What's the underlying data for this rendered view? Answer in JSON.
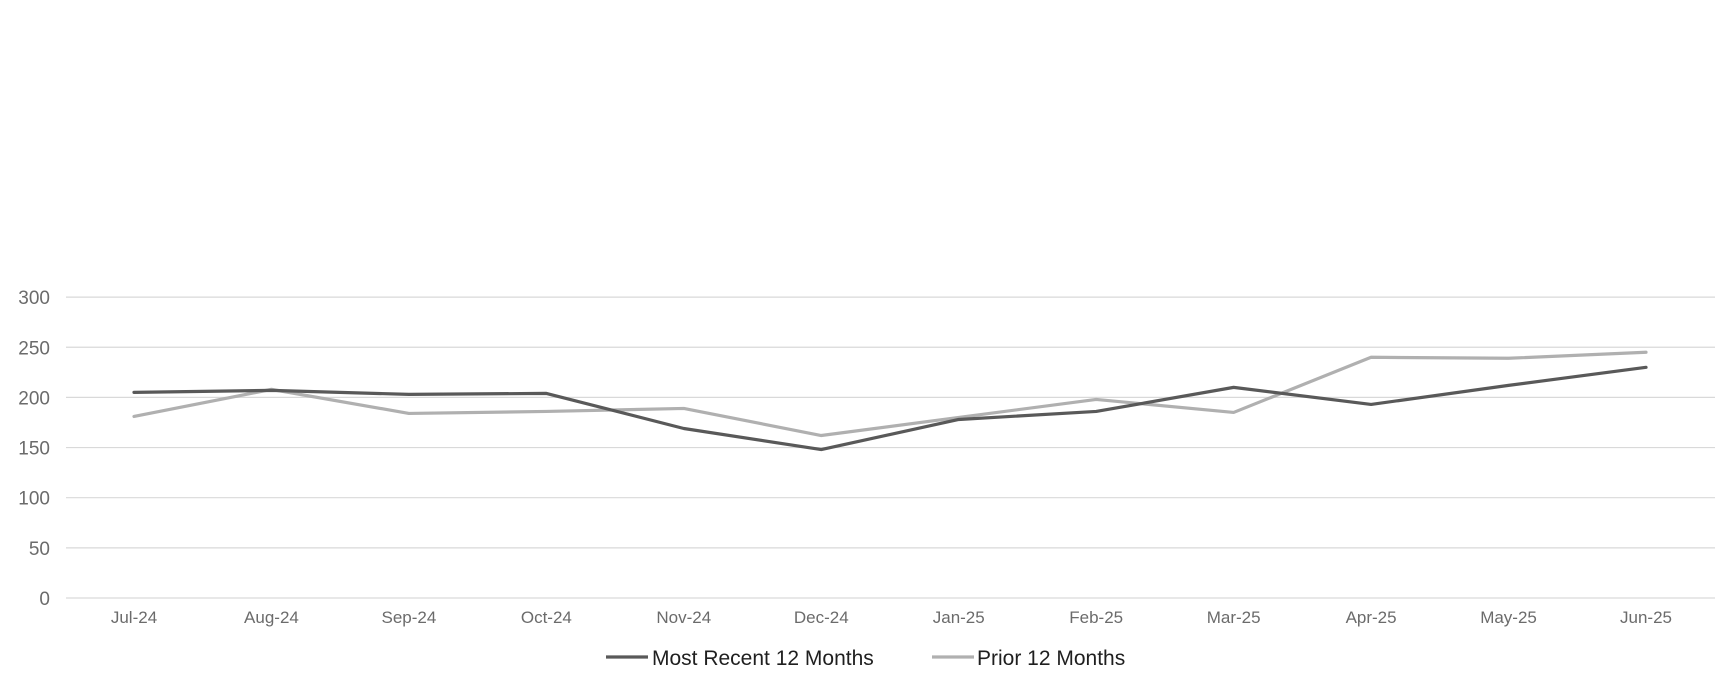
{
  "chart_data": {
    "type": "line",
    "title": "",
    "xlabel": "",
    "ylabel": "",
    "categories": [
      "Jul-24",
      "Aug-24",
      "Sep-24",
      "Oct-24",
      "Nov-24",
      "Dec-24",
      "Jan-25",
      "Feb-25",
      "Mar-25",
      "Apr-25",
      "May-25",
      "Jun-25"
    ],
    "ylim": [
      0,
      300
    ],
    "yticks": [
      0,
      50,
      100,
      150,
      200,
      250,
      300
    ],
    "ytick_labels": [
      "0",
      "50",
      "100",
      "150",
      "200",
      "250",
      "300"
    ],
    "grid": true,
    "legend_position": "bottom-center",
    "series": [
      {
        "name": "Most Recent 12 Months",
        "color": "#595959",
        "values": [
          205,
          207,
          203,
          204,
          169,
          148,
          178,
          186,
          210,
          193,
          212,
          230
        ]
      },
      {
        "name": "Prior 12 Months",
        "color": "#b0b0b0",
        "values": [
          181,
          208,
          184,
          186,
          189,
          162,
          180,
          198,
          185,
          240,
          239,
          245
        ]
      }
    ]
  }
}
